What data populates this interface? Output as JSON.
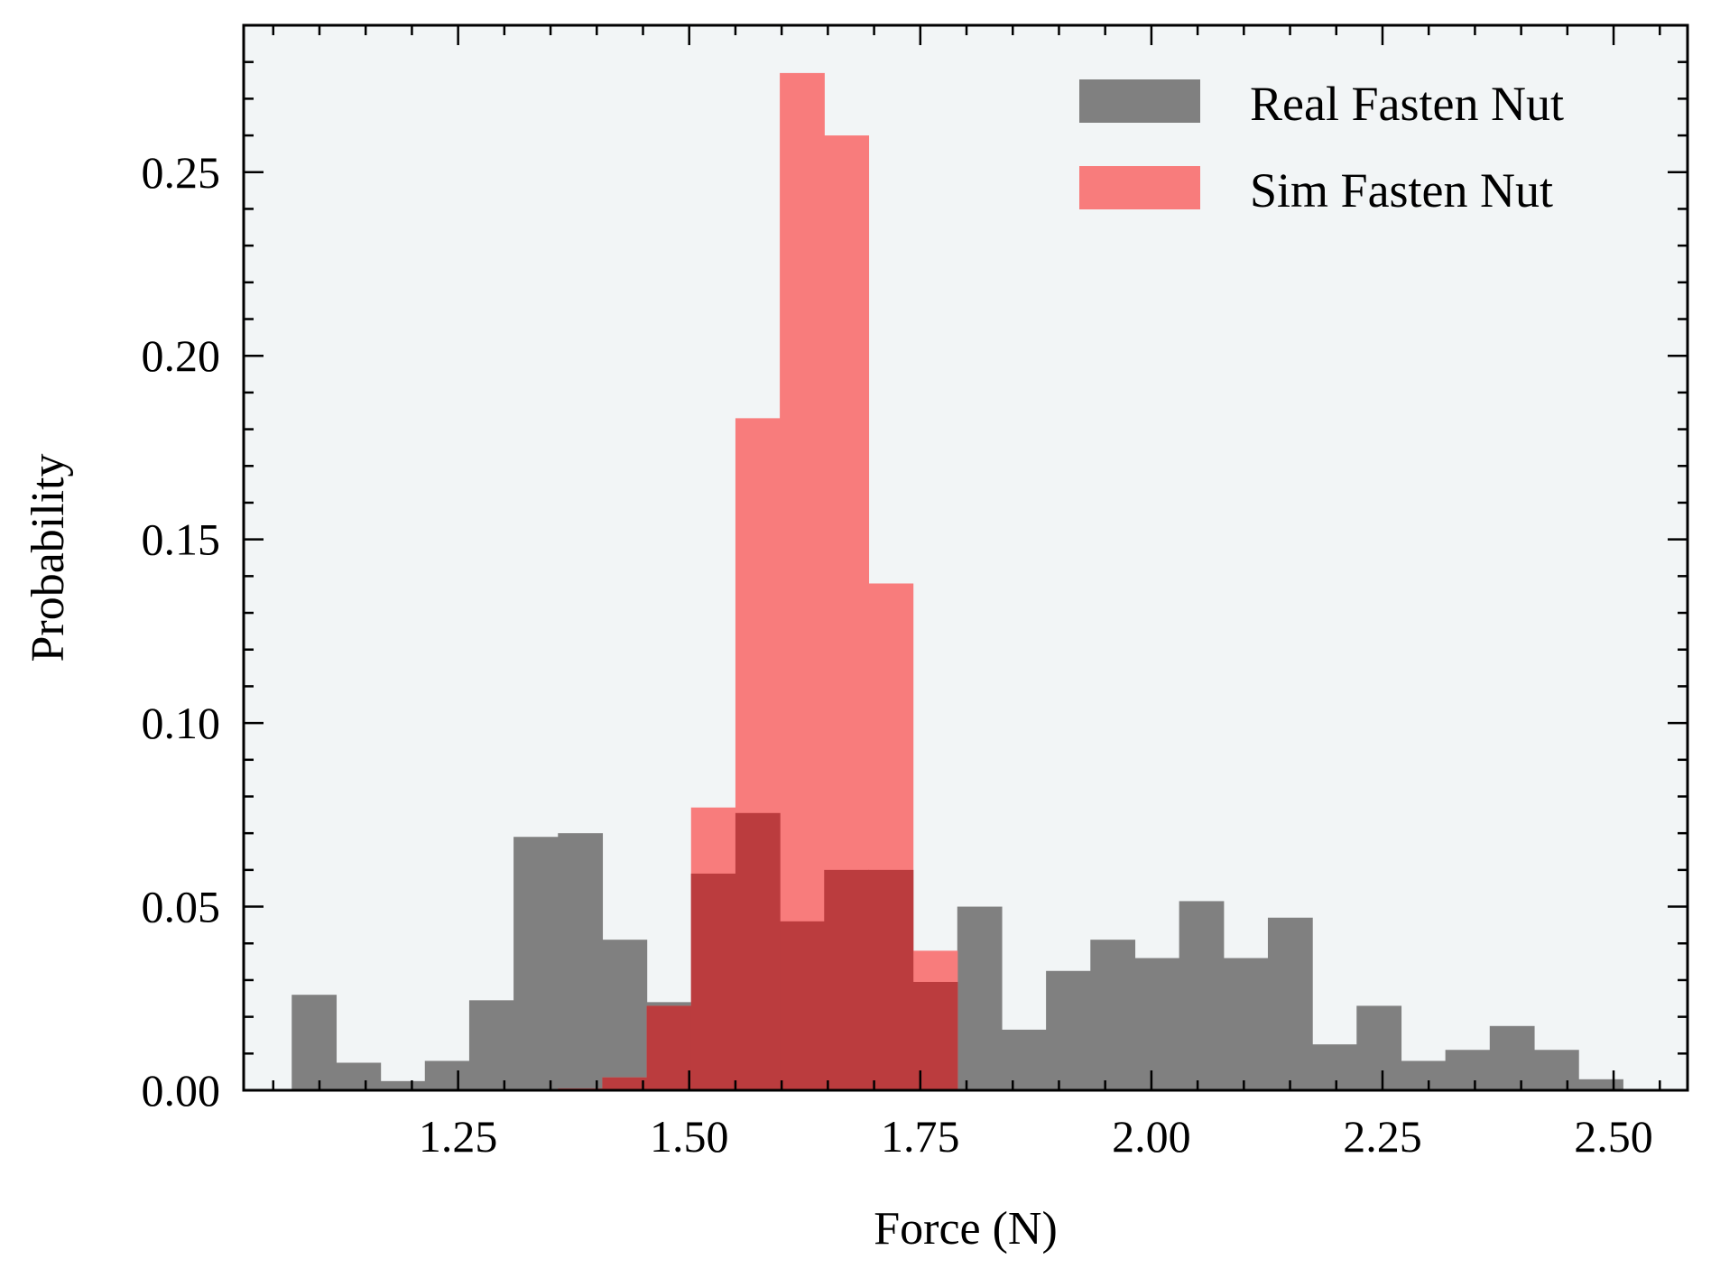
{
  "chart_data": {
    "type": "histogram",
    "xlabel": "Force (N)",
    "ylabel": "Probability",
    "xlim": [
      1.018,
      2.58
    ],
    "ylim": [
      0,
      0.29
    ],
    "xticks": [
      "1.25",
      "1.50",
      "1.75",
      "2.00",
      "2.25",
      "2.50"
    ],
    "yticks": [
      "0.00",
      "0.05",
      "0.10",
      "0.15",
      "0.20",
      "0.25"
    ],
    "grid": false,
    "legend_position": "top-right",
    "background_color": "#f2f5f6",
    "series": [
      {
        "name": "Real Fasten Nut",
        "color": "#808080",
        "bins": [
          {
            "start": 1.07,
            "end": 1.118,
            "value": 0.026
          },
          {
            "start": 1.118,
            "end": 1.166,
            "value": 0.0075
          },
          {
            "start": 1.166,
            "end": 1.214,
            "value": 0.0025
          },
          {
            "start": 1.214,
            "end": 1.262,
            "value": 0.008
          },
          {
            "start": 1.262,
            "end": 1.31,
            "value": 0.0245
          },
          {
            "start": 1.31,
            "end": 1.358,
            "value": 0.069
          },
          {
            "start": 1.358,
            "end": 1.406,
            "value": 0.07
          },
          {
            "start": 1.406,
            "end": 1.454,
            "value": 0.041
          },
          {
            "start": 1.454,
            "end": 1.502,
            "value": 0.024
          },
          {
            "start": 1.502,
            "end": 1.55,
            "value": 0.059
          },
          {
            "start": 1.55,
            "end": 1.598,
            "value": 0.0755
          },
          {
            "start": 1.598,
            "end": 1.646,
            "value": 0.046
          },
          {
            "start": 1.646,
            "end": 1.694,
            "value": 0.06
          },
          {
            "start": 1.694,
            "end": 1.742,
            "value": 0.06
          },
          {
            "start": 1.742,
            "end": 1.79,
            "value": 0.0295
          },
          {
            "start": 1.79,
            "end": 1.838,
            "value": 0.05
          },
          {
            "start": 1.838,
            "end": 1.886,
            "value": 0.0165
          },
          {
            "start": 1.886,
            "end": 1.934,
            "value": 0.0325
          },
          {
            "start": 1.934,
            "end": 1.982,
            "value": 0.041
          },
          {
            "start": 1.982,
            "end": 2.03,
            "value": 0.036
          },
          {
            "start": 2.03,
            "end": 2.078,
            "value": 0.0515
          },
          {
            "start": 2.078,
            "end": 2.126,
            "value": 0.036
          },
          {
            "start": 2.126,
            "end": 2.174,
            "value": 0.047
          },
          {
            "start": 2.174,
            "end": 2.222,
            "value": 0.0125
          },
          {
            "start": 2.222,
            "end": 2.27,
            "value": 0.023
          },
          {
            "start": 2.27,
            "end": 2.318,
            "value": 0.008
          },
          {
            "start": 2.318,
            "end": 2.366,
            "value": 0.011
          },
          {
            "start": 2.366,
            "end": 2.414,
            "value": 0.0175
          },
          {
            "start": 2.414,
            "end": 2.462,
            "value": 0.011
          },
          {
            "start": 2.462,
            "end": 2.51,
            "value": 0.003
          }
        ]
      },
      {
        "name": "Sim Fasten Nut",
        "color": "#f87c7c",
        "overlap_color": "#bb3c3e",
        "bins": [
          {
            "start": 1.358,
            "end": 1.406,
            "value": 0.0005
          },
          {
            "start": 1.406,
            "end": 1.454,
            "value": 0.0035
          },
          {
            "start": 1.454,
            "end": 1.502,
            "value": 0.023
          },
          {
            "start": 1.502,
            "end": 1.55,
            "value": 0.077
          },
          {
            "start": 1.55,
            "end": 1.598,
            "value": 0.183
          },
          {
            "start": 1.598,
            "end": 1.646,
            "value": 0.277
          },
          {
            "start": 1.646,
            "end": 1.694,
            "value": 0.26
          },
          {
            "start": 1.694,
            "end": 1.742,
            "value": 0.138
          },
          {
            "start": 1.742,
            "end": 1.79,
            "value": 0.038
          }
        ]
      }
    ]
  }
}
